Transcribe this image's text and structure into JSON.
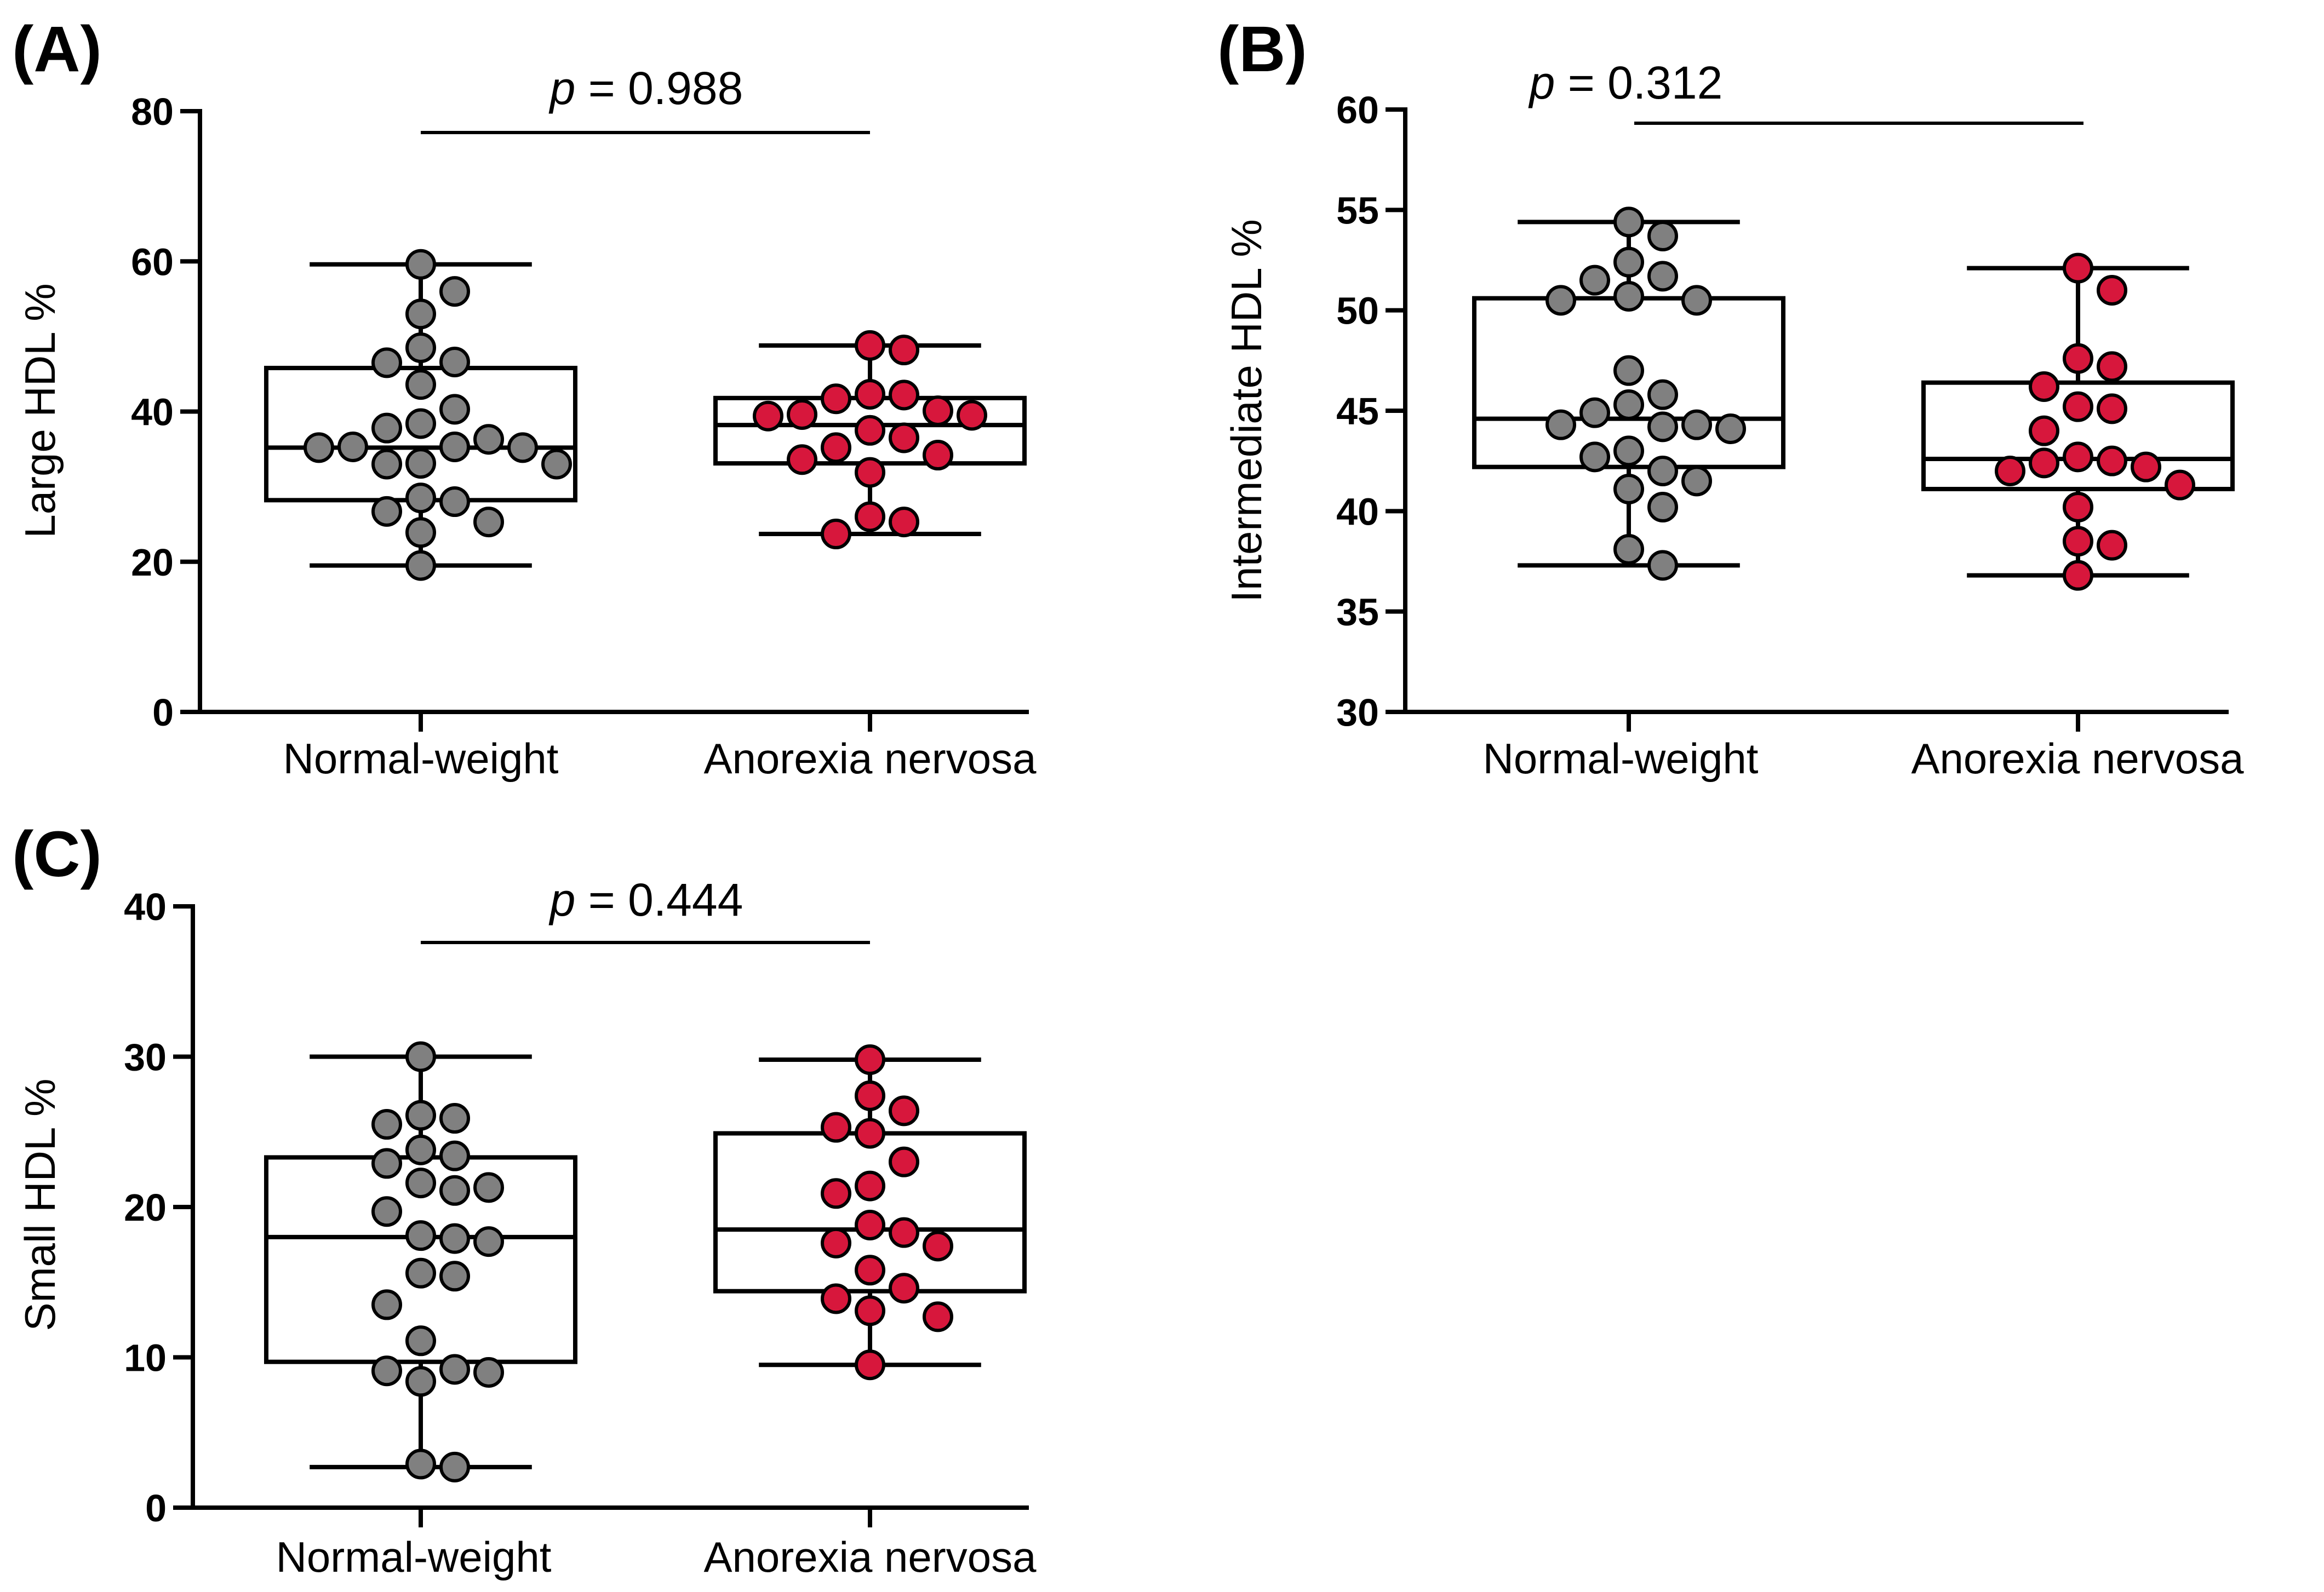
{
  "colors": {
    "normal": "#808080",
    "anorexia": "#d7173c",
    "stroke": "#000000"
  },
  "chart_data": [
    {
      "type": "box-scatter",
      "panel": "(A)",
      "ylabel": "Large HDL %",
      "ylim": [
        0,
        80
      ],
      "yticks": [
        0,
        20,
        40,
        60,
        80
      ],
      "categories": [
        "Normal-weight",
        "Anorexia nervosa"
      ],
      "p_label": {
        "italic": "p",
        "rest": " = 0.988"
      },
      "series": [
        {
          "name": "Normal-weight",
          "box": {
            "min": 19.5,
            "q1": 28.2,
            "median": 35.2,
            "q3": 45.8,
            "max": 59.6
          },
          "points": [
            59.6,
            56.0,
            53.0,
            48.5,
            46.5,
            46.6,
            43.6,
            40.3,
            38.4,
            37.8,
            36.3,
            35.2,
            35.3,
            35.3,
            35.2,
            33.0,
            33.1,
            33.0,
            28.5,
            28.0,
            26.7,
            25.3,
            23.9,
            19.5
          ]
        },
        {
          "name": "Anorexia nervosa",
          "box": {
            "min": 23.7,
            "q1": 33.1,
            "median": 38.2,
            "q3": 41.8,
            "max": 48.8
          },
          "points": [
            48.8,
            48.2,
            42.3,
            42.2,
            41.7,
            40.1,
            39.6,
            39.5,
            39.4,
            37.5,
            36.5,
            35.2,
            34.2,
            33.6,
            31.9,
            26.0,
            25.3,
            23.7
          ]
        }
      ]
    },
    {
      "type": "box-scatter",
      "panel": "(B)",
      "ylabel": "Intermediate HDL %",
      "ylim": [
        30,
        60
      ],
      "yticks": [
        30,
        35,
        40,
        45,
        50,
        55,
        60
      ],
      "categories": [
        "Normal-weight",
        "Anorexia nervosa"
      ],
      "p_label": {
        "italic": "p",
        "rest": " = 0.312"
      },
      "series": [
        {
          "name": "Normal-weight",
          "box": {
            "min": 37.3,
            "q1": 42.2,
            "median": 44.6,
            "q3": 50.6,
            "max": 54.4
          },
          "points": [
            54.4,
            53.7,
            52.4,
            51.7,
            51.5,
            50.7,
            50.5,
            50.5,
            47.0,
            45.8,
            45.3,
            44.9,
            44.3,
            44.2,
            44.1,
            44.3,
            43.0,
            42.7,
            42.0,
            41.5,
            41.1,
            40.2,
            38.1,
            37.3
          ]
        },
        {
          "name": "Anorexia nervosa",
          "box": {
            "min": 36.8,
            "q1": 41.1,
            "median": 42.6,
            "q3": 46.4,
            "max": 52.1
          },
          "points": [
            52.1,
            51.0,
            47.6,
            47.2,
            46.2,
            45.2,
            45.1,
            44.0,
            42.7,
            42.5,
            42.4,
            42.2,
            42.0,
            41.3,
            40.2,
            38.5,
            38.3,
            36.8
          ]
        }
      ]
    },
    {
      "type": "box-scatter",
      "panel": "(C)",
      "ylabel": "Small HDL %",
      "ylim": [
        0,
        40
      ],
      "yticks": [
        0,
        10,
        20,
        30,
        40
      ],
      "categories": [
        "Normal-weight",
        "Anorexia nervosa"
      ],
      "p_label": {
        "italic": "p",
        "rest": " = 0.444"
      },
      "series": [
        {
          "name": "Normal-weight",
          "box": {
            "min": 2.7,
            "q1": 9.7,
            "median": 18.0,
            "q3": 23.3,
            "max": 30.0
          },
          "points": [
            30.0,
            26.1,
            25.9,
            25.5,
            23.8,
            23.4,
            22.9,
            21.6,
            21.3,
            21.1,
            19.7,
            18.1,
            17.9,
            17.7,
            15.6,
            15.4,
            13.5,
            11.1,
            9.2,
            9.1,
            9.0,
            8.4,
            2.9,
            2.7
          ]
        },
        {
          "name": "Anorexia nervosa",
          "box": {
            "min": 9.5,
            "q1": 14.4,
            "median": 18.5,
            "q3": 24.9,
            "max": 29.8
          },
          "points": [
            29.8,
            27.4,
            26.4,
            25.3,
            24.9,
            23.0,
            21.4,
            20.9,
            18.8,
            18.3,
            17.4,
            17.6,
            15.8,
            14.6,
            13.9,
            13.1,
            12.7,
            9.5
          ]
        }
      ]
    }
  ]
}
